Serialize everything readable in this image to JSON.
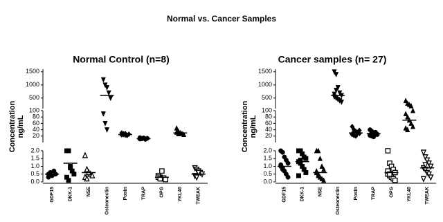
{
  "title": "Normal vs. Cancer Samples",
  "chart_data": [
    {
      "type": "dotplot",
      "title": "Normal Control (n=8)",
      "ylabel": [
        "Concentration",
        "ng/mL"
      ],
      "categories": [
        "GDF15",
        "DKK-1",
        "NSE",
        "Osteonectin",
        "Postn",
        "TRAP",
        "OPG",
        "YKL40",
        "TWEAK"
      ],
      "markers": [
        "circle",
        "square",
        "triangle-open",
        "triangle-down",
        "diamond",
        "circle",
        "square-open",
        "triangle",
        "triangle-down-open"
      ],
      "color": "#000000",
      "values": [
        [
          0.5,
          0.6,
          0.4,
          0.7,
          0.5,
          0.3,
          0.6,
          0.4
        ],
        [
          2.0,
          2.0,
          0.9,
          0.7,
          0.5,
          0.3,
          0.1,
          1.0
        ],
        [
          1.7,
          0.8,
          0.6,
          0.5,
          0.4,
          0.3,
          0.2,
          0.6
        ],
        [
          1200,
          1000,
          900,
          700,
          500,
          90,
          60,
          40
        ],
        [
          30,
          25,
          28,
          22,
          26,
          24,
          27,
          23
        ],
        [
          15,
          12,
          14,
          10,
          13,
          11,
          12,
          14
        ],
        [
          0.4,
          0.3,
          0.2,
          0.25,
          0.15,
          0.3,
          0.2,
          0.7
        ],
        [
          45,
          35,
          30,
          28,
          25,
          32,
          27,
          30
        ],
        [
          0.9,
          0.8,
          0.7,
          0.6,
          0.5,
          0.4,
          0.3,
          0.6
        ]
      ],
      "means": [
        0.5,
        1.2,
        0.6,
        600,
        25,
        12,
        0.3,
        30,
        0.5
      ],
      "ysegments": [
        {
          "ylim": [
            0,
            2
          ],
          "yticks": [
            {
              "value": 0,
              "label": "0.0"
            },
            0.5,
            {
              "value": 1,
              "label": "1.0"
            },
            1.5,
            {
              "value": 2,
              "label": "2.0"
            }
          ]
        },
        {
          "ylim": [
            0,
            100
          ],
          "yticks": [
            20,
            40,
            60,
            80,
            100
          ]
        },
        {
          "ylim": [
            100,
            1600
          ],
          "yticks": [
            500,
            1000,
            1500
          ]
        }
      ]
    },
    {
      "type": "dotplot",
      "title": "Cancer samples (n= 27)",
      "ylabel": [
        "Concentration",
        "ng/mL"
      ],
      "categories": [
        "GDF15",
        "DKK-1",
        "NSE",
        "Osteonectin",
        "Postn",
        "TRAP",
        "OPG",
        "YKL40",
        "TWEAK"
      ],
      "markers": [
        "circle",
        "square",
        "triangle",
        "triangle-down",
        "diamond",
        "circle",
        "square-open",
        "triangle",
        "triangle-down-open"
      ],
      "color": "#000000",
      "values": [
        [
          2.0,
          1.9,
          1.6,
          1.4,
          1.2,
          1.0,
          0.9,
          0.7,
          0.5,
          0.3,
          1.1,
          0.8
        ],
        [
          2.0,
          2.0,
          1.8,
          1.6,
          1.5,
          1.3,
          1.2,
          1.0,
          0.8,
          0.6,
          0.4,
          1.4
        ],
        [
          2.0,
          2.0,
          1.5,
          1.0,
          0.8,
          0.6,
          0.5,
          0.3,
          0.2,
          0.1,
          0.7,
          0.4
        ],
        [
          1500,
          1400,
          900,
          700,
          600,
          550,
          500,
          450,
          400,
          350,
          650,
          800
        ],
        [
          50,
          40,
          35,
          30,
          28,
          25,
          22,
          20,
          32,
          38,
          27,
          33
        ],
        [
          40,
          35,
          30,
          28,
          25,
          22,
          20,
          18,
          32,
          26,
          24,
          30
        ],
        [
          2.0,
          1.2,
          1.0,
          0.8,
          0.6,
          0.5,
          0.4,
          0.3,
          0.2,
          0.1,
          0.7,
          0.5
        ],
        [
          400,
          300,
          250,
          200,
          100,
          90,
          80,
          70,
          60,
          50,
          45,
          40
        ],
        [
          1.9,
          1.6,
          1.4,
          1.2,
          1.0,
          0.9,
          0.8,
          0.6,
          0.5,
          0.3,
          0.2,
          1.1
        ]
      ],
      "means": [
        1.0,
        1.3,
        0.6,
        600,
        30,
        28,
        0.6,
        70,
        0.9
      ],
      "ysegments": [
        {
          "ylim": [
            0,
            2
          ],
          "yticks": [
            {
              "value": 0,
              "label": "0.0"
            },
            0.5,
            {
              "value": 1,
              "label": "1.0"
            },
            1.5,
            {
              "value": 2,
              "label": "2.0"
            }
          ]
        },
        {
          "ylim": [
            0,
            100
          ],
          "yticks": [
            20,
            40,
            60,
            80,
            100
          ]
        },
        {
          "ylim": [
            100,
            1600
          ],
          "yticks": [
            500,
            1000,
            1500
          ]
        }
      ]
    }
  ]
}
